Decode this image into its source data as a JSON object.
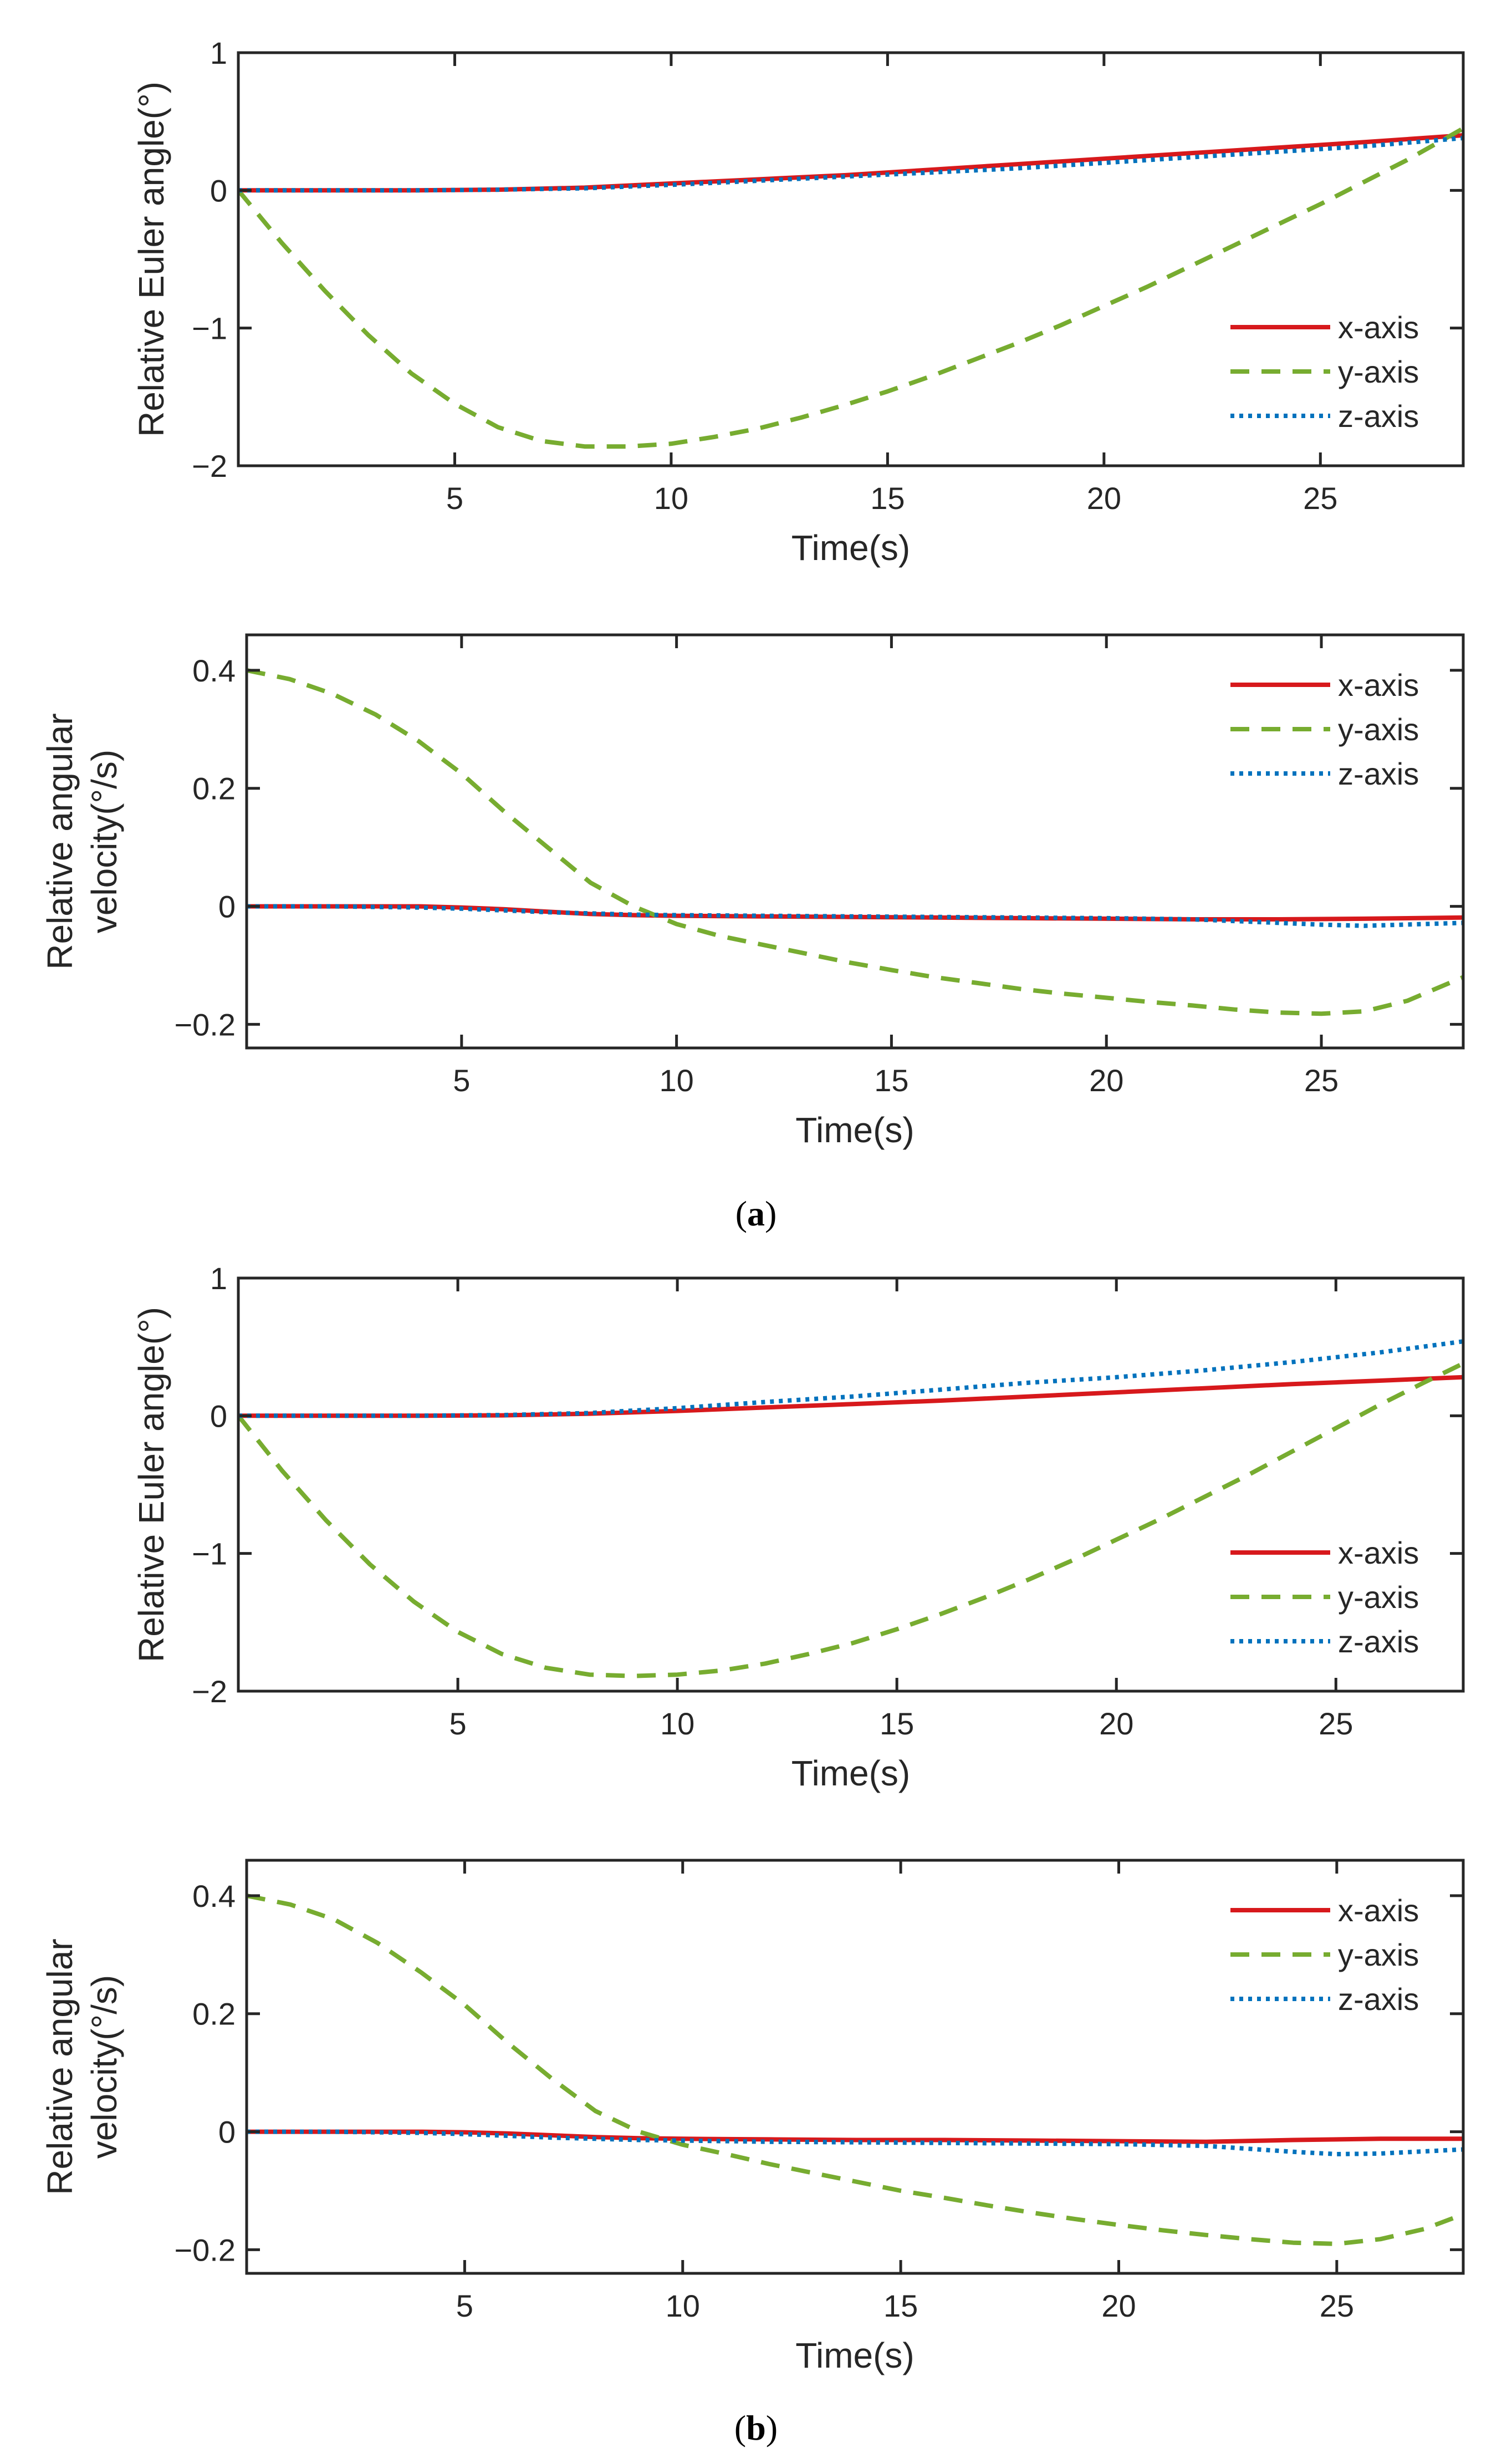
{
  "colors": {
    "x_axis": "#d7191c",
    "y_axis": "#77ac30",
    "z_axis": "#0072bd",
    "axis": "#262626"
  },
  "captions": [
    {
      "open": "(",
      "letter": "a",
      "close": ")"
    },
    {
      "open": "(",
      "letter": "b",
      "close": ")"
    }
  ],
  "chart_data": [
    {
      "type": "line",
      "xlabel": "Time(s)",
      "ylabel": [
        "Relative Euler angle(°)"
      ],
      "xlim": [
        0,
        28.3
      ],
      "ylim": [
        -2,
        1
      ],
      "xticks": [
        5,
        10,
        15,
        20,
        25
      ],
      "xtick_labels": [
        "5",
        "10",
        "15",
        "20",
        "25"
      ],
      "yticks": [
        -2,
        -1,
        0,
        1
      ],
      "ytick_labels": [
        "−2",
        "−1",
        "0",
        "1"
      ],
      "legend": [
        "x-axis",
        "y-axis",
        "z-axis"
      ],
      "legend_position": "bottom-right",
      "series": [
        {
          "name": "x-axis",
          "style": "solid",
          "x": [
            0,
            2,
            4,
            6,
            8,
            10,
            12,
            14,
            16,
            18,
            20,
            22,
            24,
            26,
            28.3
          ],
          "values": [
            0,
            0,
            0,
            0.005,
            0.02,
            0.05,
            0.08,
            0.11,
            0.15,
            0.19,
            0.23,
            0.27,
            0.31,
            0.35,
            0.4
          ]
        },
        {
          "name": "y-axis",
          "style": "dashed",
          "x": [
            0,
            1,
            2,
            3,
            4,
            5,
            6,
            7,
            8,
            9,
            10,
            11,
            12,
            13,
            14,
            15,
            16,
            17,
            18,
            19,
            20,
            21,
            22,
            23,
            24,
            25,
            26,
            27,
            28.3
          ],
          "values": [
            0,
            -0.38,
            -0.73,
            -1.05,
            -1.33,
            -1.55,
            -1.72,
            -1.82,
            -1.86,
            -1.86,
            -1.84,
            -1.79,
            -1.73,
            -1.65,
            -1.56,
            -1.46,
            -1.35,
            -1.23,
            -1.11,
            -0.98,
            -0.84,
            -0.7,
            -0.55,
            -0.4,
            -0.25,
            -0.1,
            0.06,
            0.22,
            0.45
          ]
        },
        {
          "name": "z-axis",
          "style": "dotted",
          "x": [
            0,
            2,
            4,
            6,
            8,
            10,
            12,
            14,
            16,
            18,
            20,
            22,
            24,
            26,
            28.3
          ],
          "values": [
            0,
            0,
            0,
            0.005,
            0.015,
            0.04,
            0.07,
            0.1,
            0.13,
            0.16,
            0.2,
            0.24,
            0.28,
            0.32,
            0.38
          ]
        }
      ]
    },
    {
      "type": "line",
      "xlabel": "Time(s)",
      "ylabel": [
        "Relative angular",
        "velocity(°/s)"
      ],
      "xlim": [
        0,
        28.3
      ],
      "ylim": [
        -0.24,
        0.46
      ],
      "xticks": [
        5,
        10,
        15,
        20,
        25
      ],
      "xtick_labels": [
        "5",
        "10",
        "15",
        "20",
        "25"
      ],
      "yticks": [
        -0.2,
        0,
        0.2,
        0.4
      ],
      "ytick_labels": [
        "−0.2",
        "0",
        "0.2",
        "0.4"
      ],
      "legend": [
        "x-axis",
        "y-axis",
        "z-axis"
      ],
      "legend_position": "top-right",
      "series": [
        {
          "name": "x-axis",
          "style": "solid",
          "x": [
            0,
            2,
            4,
            5,
            6,
            7,
            8,
            9,
            10,
            12,
            14,
            16,
            18,
            20,
            22,
            24,
            26,
            28.3
          ],
          "values": [
            0,
            0,
            0,
            -0.002,
            -0.005,
            -0.009,
            -0.013,
            -0.015,
            -0.016,
            -0.017,
            -0.018,
            -0.019,
            -0.02,
            -0.021,
            -0.022,
            -0.022,
            -0.021,
            -0.019
          ]
        },
        {
          "name": "y-axis",
          "style": "dashed",
          "x": [
            0,
            1,
            2,
            3,
            4,
            5,
            6,
            7,
            8,
            9,
            10,
            11,
            12,
            13,
            14,
            15,
            16,
            17,
            18,
            19,
            20,
            21,
            22,
            23,
            24,
            25,
            26,
            27,
            28.3
          ],
          "values": [
            0.4,
            0.385,
            0.36,
            0.325,
            0.28,
            0.225,
            0.16,
            0.1,
            0.04,
            0,
            -0.03,
            -0.05,
            -0.065,
            -0.08,
            -0.095,
            -0.108,
            -0.12,
            -0.13,
            -0.14,
            -0.148,
            -0.155,
            -0.162,
            -0.168,
            -0.175,
            -0.18,
            -0.182,
            -0.178,
            -0.16,
            -0.12
          ]
        },
        {
          "name": "z-axis",
          "style": "dotted",
          "x": [
            0,
            2,
            4,
            5,
            6,
            7,
            8,
            9,
            10,
            12,
            14,
            16,
            18,
            20,
            22,
            24,
            25,
            26,
            28.3
          ],
          "values": [
            0,
            0,
            -0.002,
            -0.004,
            -0.007,
            -0.01,
            -0.012,
            -0.014,
            -0.015,
            -0.016,
            -0.017,
            -0.018,
            -0.019,
            -0.02,
            -0.022,
            -0.028,
            -0.031,
            -0.033,
            -0.028
          ]
        }
      ]
    },
    {
      "type": "line",
      "xlabel": "Time(s)",
      "ylabel": [
        "Relative Euler angle(°)"
      ],
      "xlim": [
        0,
        27.9
      ],
      "ylim": [
        -2,
        1
      ],
      "xticks": [
        5,
        10,
        15,
        20,
        25
      ],
      "xtick_labels": [
        "5",
        "10",
        "15",
        "20",
        "25"
      ],
      "yticks": [
        -2,
        -1,
        0,
        1
      ],
      "ytick_labels": [
        "−2",
        "−1",
        "0",
        "1"
      ],
      "legend": [
        "x-axis",
        "y-axis",
        "z-axis"
      ],
      "legend_position": "bottom-right",
      "series": [
        {
          "name": "x-axis",
          "style": "solid",
          "x": [
            0,
            2,
            4,
            6,
            8,
            10,
            12,
            14,
            16,
            18,
            20,
            22,
            24,
            26,
            27.9
          ],
          "values": [
            0,
            0,
            0,
            0.003,
            0.015,
            0.035,
            0.06,
            0.085,
            0.11,
            0.14,
            0.17,
            0.2,
            0.23,
            0.255,
            0.28
          ]
        },
        {
          "name": "y-axis",
          "style": "dashed",
          "x": [
            0,
            1,
            2,
            3,
            4,
            5,
            6,
            7,
            8,
            9,
            10,
            11,
            12,
            13,
            14,
            15,
            16,
            17,
            18,
            19,
            20,
            21,
            22,
            23,
            24,
            25,
            26,
            27,
            27.9
          ],
          "values": [
            0,
            -0.4,
            -0.76,
            -1.08,
            -1.35,
            -1.57,
            -1.73,
            -1.83,
            -1.88,
            -1.89,
            -1.88,
            -1.85,
            -1.8,
            -1.73,
            -1.65,
            -1.55,
            -1.44,
            -1.32,
            -1.19,
            -1.05,
            -0.9,
            -0.75,
            -0.59,
            -0.43,
            -0.26,
            -0.09,
            0.08,
            0.24,
            0.38
          ]
        },
        {
          "name": "z-axis",
          "style": "dotted",
          "x": [
            0,
            2,
            4,
            6,
            8,
            10,
            12,
            14,
            16,
            18,
            20,
            22,
            24,
            26,
            27.9
          ],
          "values": [
            0,
            0,
            0,
            0.005,
            0.02,
            0.055,
            0.1,
            0.14,
            0.19,
            0.24,
            0.28,
            0.33,
            0.39,
            0.46,
            0.54
          ]
        }
      ]
    },
    {
      "type": "line",
      "xlabel": "Time(s)",
      "ylabel": [
        "Relative angular",
        "velocity(°/s)"
      ],
      "xlim": [
        0,
        27.9
      ],
      "ylim": [
        -0.24,
        0.46
      ],
      "xticks": [
        5,
        10,
        15,
        20,
        25
      ],
      "xtick_labels": [
        "5",
        "10",
        "15",
        "20",
        "25"
      ],
      "yticks": [
        -0.2,
        0,
        0.2,
        0.4
      ],
      "ytick_labels": [
        "−0.2",
        "0",
        "0.2",
        "0.4"
      ],
      "legend": [
        "x-axis",
        "y-axis",
        "z-axis"
      ],
      "legend_position": "top-right",
      "series": [
        {
          "name": "x-axis",
          "style": "solid",
          "x": [
            0,
            2,
            4,
            5,
            6,
            7,
            8,
            9,
            10,
            12,
            14,
            16,
            18,
            20,
            22,
            24,
            26,
            27.9
          ],
          "values": [
            0,
            0,
            0,
            -0.001,
            -0.003,
            -0.006,
            -0.009,
            -0.011,
            -0.012,
            -0.013,
            -0.014,
            -0.014,
            -0.015,
            -0.016,
            -0.017,
            -0.014,
            -0.012,
            -0.012
          ]
        },
        {
          "name": "y-axis",
          "style": "dashed",
          "x": [
            0,
            1,
            2,
            3,
            4,
            5,
            6,
            7,
            8,
            9,
            10,
            11,
            12,
            13,
            14,
            15,
            16,
            17,
            18,
            19,
            20,
            21,
            22,
            23,
            24,
            25,
            26,
            27,
            27.9
          ],
          "values": [
            0.4,
            0.385,
            0.36,
            0.32,
            0.27,
            0.215,
            0.15,
            0.09,
            0.035,
            0,
            -0.022,
            -0.038,
            -0.055,
            -0.07,
            -0.085,
            -0.1,
            -0.112,
            -0.125,
            -0.137,
            -0.148,
            -0.158,
            -0.167,
            -0.175,
            -0.182,
            -0.188,
            -0.19,
            -0.182,
            -0.165,
            -0.14
          ]
        },
        {
          "name": "z-axis",
          "style": "dotted",
          "x": [
            0,
            2,
            4,
            5,
            6,
            7,
            8,
            9,
            10,
            12,
            14,
            16,
            18,
            20,
            22,
            24,
            25,
            26,
            27.9
          ],
          "values": [
            0,
            0,
            -0.002,
            -0.004,
            -0.007,
            -0.01,
            -0.012,
            -0.014,
            -0.015,
            -0.017,
            -0.018,
            -0.019,
            -0.02,
            -0.021,
            -0.024,
            -0.034,
            -0.038,
            -0.037,
            -0.03
          ]
        }
      ]
    }
  ]
}
